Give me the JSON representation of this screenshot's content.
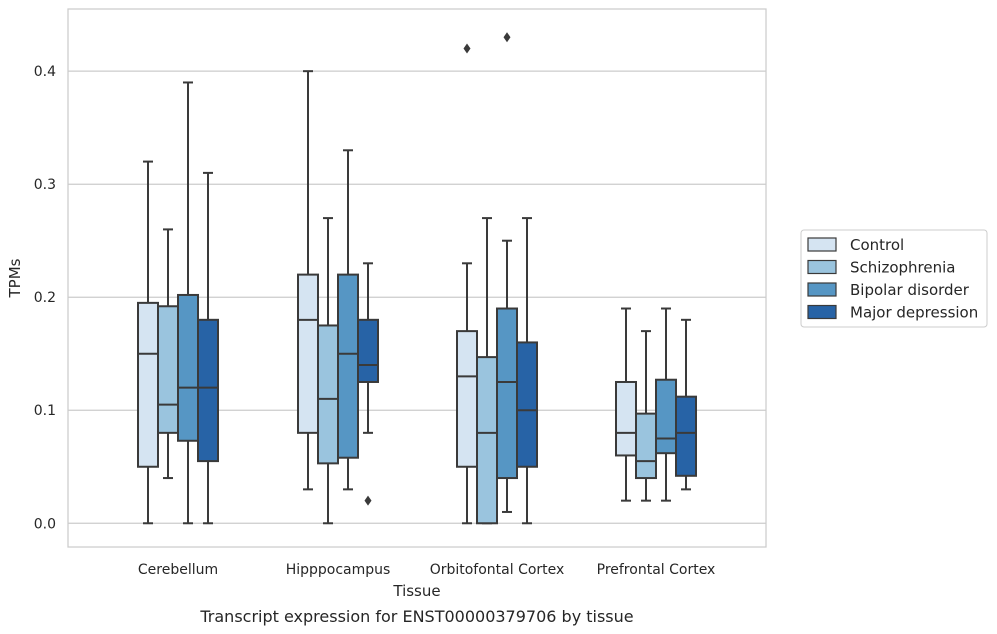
{
  "caption": "Transcript expression for ENST00000379706 by tissue",
  "chart_data": {
    "type": "box",
    "title": "",
    "xlabel": "Tissue",
    "ylabel": "TPMs",
    "ylim": [
      -0.021,
      0.455
    ],
    "yticks": [
      0.0,
      0.1,
      0.2,
      0.3,
      0.4
    ],
    "ytick_labels": [
      "0.0",
      "0.1",
      "0.2",
      "0.3",
      "0.4"
    ],
    "grid": "horizontal",
    "legend_position": "right",
    "categories": [
      "Cerebellum",
      "Hipppocampus",
      "Orbitofontal Cortex",
      "Prefrontal Cortex"
    ],
    "series": [
      {
        "name": "Control",
        "color": "#d5e4f2",
        "boxes": [
          {
            "whislo": 0.0,
            "q1": 0.05,
            "med": 0.15,
            "q3": 0.195,
            "whishi": 0.32,
            "fliers": []
          },
          {
            "whislo": 0.03,
            "q1": 0.08,
            "med": 0.18,
            "q3": 0.22,
            "whishi": 0.4,
            "fliers": []
          },
          {
            "whislo": 0.0,
            "q1": 0.05,
            "med": 0.13,
            "q3": 0.17,
            "whishi": 0.23,
            "fliers": [
              0.42
            ]
          },
          {
            "whislo": 0.02,
            "q1": 0.06,
            "med": 0.08,
            "q3": 0.125,
            "whishi": 0.19,
            "fliers": []
          }
        ]
      },
      {
        "name": "Schizophrenia",
        "color": "#9ac4de",
        "boxes": [
          {
            "whislo": 0.04,
            "q1": 0.08,
            "med": 0.105,
            "q3": 0.192,
            "whishi": 0.26,
            "fliers": []
          },
          {
            "whislo": 0.0,
            "q1": 0.053,
            "med": 0.11,
            "q3": 0.175,
            "whishi": 0.27,
            "fliers": []
          },
          {
            "whislo": 0.0,
            "q1": 0.0,
            "med": 0.08,
            "q3": 0.147,
            "whishi": 0.27,
            "fliers": []
          },
          {
            "whislo": 0.02,
            "q1": 0.04,
            "med": 0.055,
            "q3": 0.097,
            "whishi": 0.17,
            "fliers": []
          }
        ]
      },
      {
        "name": "Bipolar disorder",
        "color": "#5696c4",
        "boxes": [
          {
            "whislo": 0.0,
            "q1": 0.073,
            "med": 0.12,
            "q3": 0.202,
            "whishi": 0.39,
            "fliers": []
          },
          {
            "whislo": 0.03,
            "q1": 0.058,
            "med": 0.15,
            "q3": 0.22,
            "whishi": 0.33,
            "fliers": []
          },
          {
            "whislo": 0.01,
            "q1": 0.04,
            "med": 0.125,
            "q3": 0.19,
            "whishi": 0.25,
            "fliers": [
              0.43
            ]
          },
          {
            "whislo": 0.02,
            "q1": 0.062,
            "med": 0.075,
            "q3": 0.127,
            "whishi": 0.19,
            "fliers": []
          }
        ]
      },
      {
        "name": "Major depression",
        "color": "#2763a6",
        "boxes": [
          {
            "whislo": 0.0,
            "q1": 0.055,
            "med": 0.12,
            "q3": 0.18,
            "whishi": 0.31,
            "fliers": []
          },
          {
            "whislo": 0.08,
            "q1": 0.125,
            "med": 0.14,
            "q3": 0.18,
            "whishi": 0.23,
            "fliers": [
              0.02
            ]
          },
          {
            "whislo": 0.0,
            "q1": 0.05,
            "med": 0.1,
            "q3": 0.16,
            "whishi": 0.27,
            "fliers": []
          },
          {
            "whislo": 0.03,
            "q1": 0.042,
            "med": 0.08,
            "q3": 0.112,
            "whishi": 0.18,
            "fliers": []
          }
        ]
      }
    ]
  }
}
